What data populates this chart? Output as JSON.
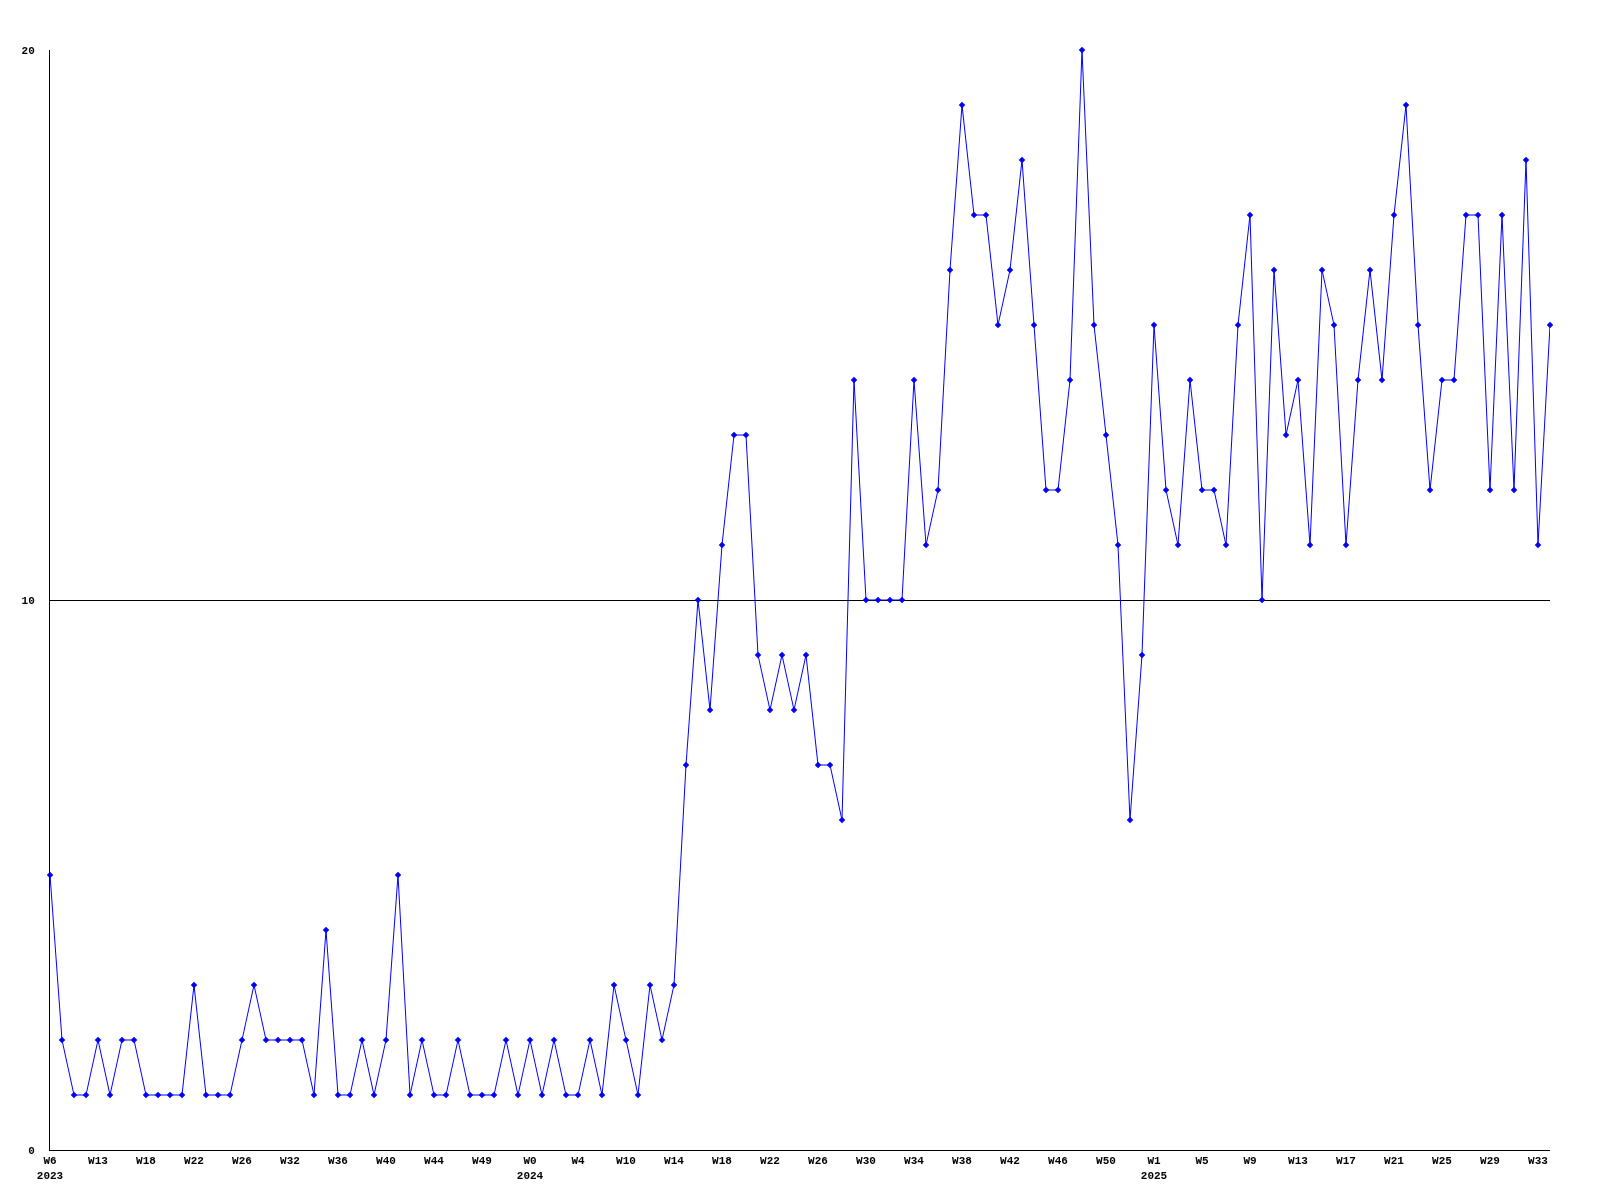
{
  "chart_data": {
    "type": "line",
    "categories": [
      "W6\n2023",
      null,
      null,
      null,
      "W13",
      null,
      null,
      null,
      "W18",
      null,
      null,
      null,
      "W22",
      null,
      null,
      null,
      "W26",
      null,
      null,
      null,
      "W32",
      null,
      null,
      null,
      "W36",
      null,
      null,
      null,
      "W40",
      null,
      null,
      null,
      "W44",
      null,
      null,
      null,
      "W49",
      null,
      null,
      null,
      "W0\n2024",
      null,
      null,
      null,
      "W4",
      null,
      null,
      null,
      "W10",
      null,
      null,
      null,
      "W14",
      null,
      null,
      null,
      "W18",
      null,
      null,
      null,
      "W22",
      null,
      null,
      null,
      "W26",
      null,
      null,
      null,
      "W30",
      null,
      null,
      null,
      "W34",
      null,
      null,
      null,
      "W38",
      null,
      null,
      null,
      "W42",
      null,
      null,
      null,
      "W46",
      null,
      null,
      null,
      "W50",
      null,
      null,
      null,
      "W1\n2025",
      null,
      null,
      null,
      "W5",
      null,
      null,
      null,
      "W9",
      null,
      null,
      null,
      "W13",
      null,
      null,
      null,
      "W17",
      null,
      null,
      null,
      "W21",
      null,
      null,
      null,
      "W25",
      null,
      null,
      null,
      "W29",
      null,
      null,
      null,
      "W33",
      null
    ],
    "series": [
      {
        "color": "#0000ff",
        "values": [
          5,
          2,
          1,
          1,
          2,
          1,
          2,
          2,
          1,
          1,
          1,
          1,
          3,
          1,
          1,
          1,
          2,
          3,
          2,
          2,
          2,
          2,
          1,
          4,
          1,
          1,
          2,
          1,
          2,
          5,
          1,
          2,
          1,
          1,
          2,
          1,
          1,
          1,
          2,
          1,
          2,
          1,
          2,
          1,
          1,
          2,
          1,
          3,
          2,
          1,
          3,
          2,
          3,
          7,
          10,
          8,
          11,
          13,
          13,
          9,
          8,
          9,
          8,
          9,
          7,
          7,
          6,
          14,
          10,
          10,
          10,
          10,
          14,
          11,
          12,
          16,
          19,
          17,
          17,
          15,
          16,
          18,
          15,
          12,
          12,
          14,
          20,
          15,
          13,
          11,
          6,
          9,
          15,
          12,
          11,
          14,
          12,
          12,
          11,
          15,
          17,
          10,
          16,
          13,
          14,
          11,
          16,
          15,
          11,
          14,
          16,
          14,
          17,
          19,
          15,
          12,
          14,
          14,
          17,
          17,
          12,
          17,
          12,
          18,
          11,
          15
        ]
      }
    ],
    "ylim": [
      0,
      20
    ],
    "yticks": [
      0,
      10,
      20
    ],
    "grid": "y",
    "marker": "diamond",
    "line_style": "solid"
  }
}
